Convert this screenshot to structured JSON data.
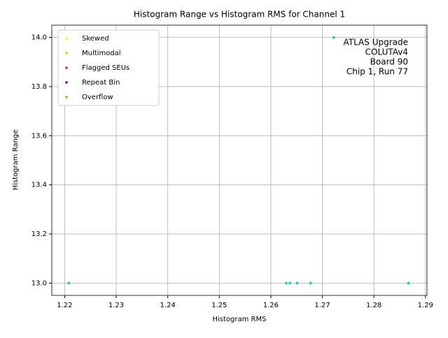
{
  "chart_data": {
    "type": "scatter",
    "title": "Histogram Range vs Histogram RMS for Channel 1",
    "x_label": "Histogram RMS",
    "y_label": "Histogram Range",
    "annotation": [
      "ATLAS Upgrade",
      "COLUTAv4",
      "Board 90",
      "Chip 1, Run 77"
    ],
    "legend": [
      {
        "name": "Skewed",
        "color": "#ffff00"
      },
      {
        "name": "Multimodal",
        "color": "#7fff00"
      },
      {
        "name": "Flagged SEUs",
        "color": "#d62728"
      },
      {
        "name": "Repeat Bin",
        "color": "#800080"
      },
      {
        "name": "Overflow",
        "color": "#ff7f0e"
      }
    ],
    "legend_position": "upper left",
    "series": [
      {
        "color": "#40bfbf",
        "x": [
          1.2208,
          1.263,
          1.2637,
          1.2651,
          1.2677,
          1.2722,
          1.2867
        ],
        "values": [
          13.0,
          13.0,
          13.0,
          13.0,
          13.0,
          14.0,
          13.0
        ]
      }
    ],
    "xlim": [
      1.2175,
      1.2903
    ],
    "ylim": [
      12.95,
      14.05
    ],
    "xticks": [
      1.22,
      1.23,
      1.24,
      1.25,
      1.26,
      1.27,
      1.28,
      1.29
    ],
    "yticks": [
      {
        "value": 13.0,
        "label": "13.0"
      },
      13.2,
      13.4,
      13.6,
      13.8,
      {
        "value": 14.0,
        "label": "14.0"
      }
    ],
    "grid": true
  }
}
